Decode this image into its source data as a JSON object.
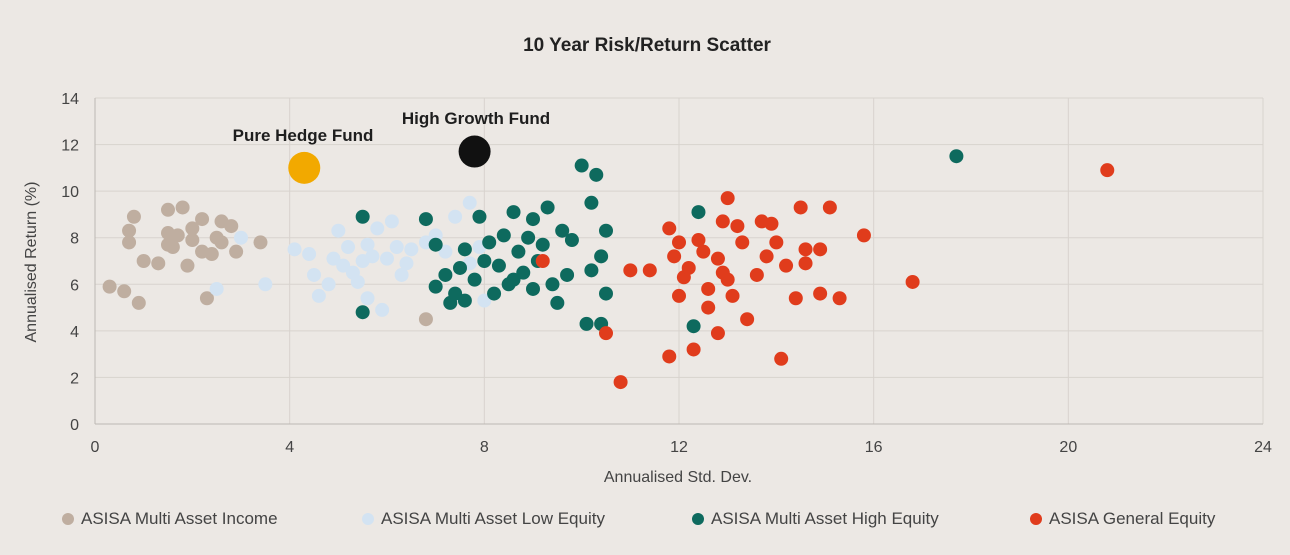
{
  "chart_data": {
    "type": "scatter",
    "title": "10 Year Risk/Return Scatter",
    "xlabel": "Annualised Std. Dev.",
    "ylabel": "Annualised Return (%)",
    "xlim": [
      0,
      24
    ],
    "ylim": [
      0,
      14
    ],
    "xticks": [
      0,
      4,
      8,
      12,
      16,
      20,
      24
    ],
    "yticks": [
      0,
      2,
      4,
      6,
      8,
      10,
      12,
      14
    ],
    "grid": true,
    "legend_position": "bottom",
    "series": [
      {
        "name": "ASISA Multi Asset Income",
        "color": "#bfaea0",
        "points": [
          [
            0.8,
            8.9
          ],
          [
            1.5,
            9.2
          ],
          [
            1.8,
            9.3
          ],
          [
            2.2,
            8.8
          ],
          [
            2.6,
            8.7
          ],
          [
            0.7,
            8.3
          ],
          [
            1.5,
            8.2
          ],
          [
            2,
            8.4
          ],
          [
            2.5,
            8.0
          ],
          [
            2.8,
            8.5
          ],
          [
            3.4,
            7.8
          ],
          [
            0.7,
            7.8
          ],
          [
            1.6,
            7.6
          ],
          [
            2.2,
            7.4
          ],
          [
            2.6,
            7.8
          ],
          [
            1,
            7.0
          ],
          [
            1.3,
            6.9
          ],
          [
            1.9,
            6.8
          ],
          [
            2.4,
            7.3
          ],
          [
            2.9,
            7.4
          ],
          [
            0.3,
            5.9
          ],
          [
            0.6,
            5.7
          ],
          [
            0.9,
            5.2
          ],
          [
            2.3,
            5.4
          ],
          [
            6.8,
            4.5
          ],
          [
            1.5,
            7.7
          ],
          [
            2.0,
            7.9
          ],
          [
            1.7,
            8.1
          ]
        ]
      },
      {
        "name": "ASISA Multi Asset Low Equity",
        "color": "#d3e3f2",
        "points": [
          [
            3.0,
            8.0
          ],
          [
            4.4,
            7.3
          ],
          [
            4.5,
            6.4
          ],
          [
            4.6,
            5.5
          ],
          [
            5.0,
            8.3
          ],
          [
            5.2,
            7.6
          ],
          [
            5.5,
            7.0
          ],
          [
            5.8,
            8.4
          ],
          [
            6.1,
            8.7
          ],
          [
            6.3,
            6.4
          ],
          [
            6.0,
            7.1
          ],
          [
            6.5,
            7.5
          ],
          [
            6.8,
            7.8
          ],
          [
            7.0,
            8.1
          ],
          [
            7.4,
            8.9
          ],
          [
            7.7,
            9.5
          ],
          [
            7.2,
            7.4
          ],
          [
            5.4,
            6.1
          ],
          [
            5.1,
            6.8
          ],
          [
            5.6,
            5.4
          ],
          [
            4.1,
            7.5
          ],
          [
            3.5,
            6.0
          ],
          [
            4.8,
            6.0
          ],
          [
            5.9,
            4.9
          ],
          [
            7.7,
            6.9
          ],
          [
            7.9,
            7.6
          ],
          [
            8.0,
            5.3
          ],
          [
            9.5,
            5.2
          ],
          [
            2.5,
            5.8
          ],
          [
            6.2,
            7.6
          ],
          [
            5.7,
            7.2
          ],
          [
            6.4,
            6.9
          ],
          [
            5.3,
            6.5
          ],
          [
            4.9,
            7.1
          ],
          [
            5.6,
            7.7
          ]
        ]
      },
      {
        "name": "ASISA Multi Asset High Equity",
        "color": "#0e6a5e",
        "points": [
          [
            5.5,
            8.9
          ],
          [
            6.8,
            8.8
          ],
          [
            7.9,
            8.9
          ],
          [
            7.0,
            7.7
          ],
          [
            7.6,
            7.5
          ],
          [
            8.4,
            8.1
          ],
          [
            8.6,
            9.1
          ],
          [
            9.0,
            8.8
          ],
          [
            9.3,
            9.3
          ],
          [
            9.6,
            8.3
          ],
          [
            10.0,
            11.1
          ],
          [
            10.3,
            10.7
          ],
          [
            10.2,
            9.5
          ],
          [
            10.5,
            8.3
          ],
          [
            10.4,
            7.2
          ],
          [
            10.2,
            6.6
          ],
          [
            10.5,
            5.6
          ],
          [
            10.1,
            4.3
          ],
          [
            10.4,
            4.3
          ],
          [
            12.4,
            9.1
          ],
          [
            12.3,
            4.2
          ],
          [
            17.7,
            11.5
          ],
          [
            5.5,
            4.8
          ],
          [
            7.0,
            5.9
          ],
          [
            7.3,
            5.2
          ],
          [
            7.6,
            5.3
          ],
          [
            7.2,
            6.4
          ],
          [
            7.8,
            6.2
          ],
          [
            8.2,
            5.6
          ],
          [
            8.5,
            6.0
          ],
          [
            8.8,
            6.5
          ],
          [
            9.1,
            7.0
          ],
          [
            9.4,
            6.0
          ],
          [
            9.7,
            6.4
          ],
          [
            8.0,
            7.0
          ],
          [
            8.7,
            7.4
          ],
          [
            9.2,
            7.7
          ],
          [
            9.8,
            7.9
          ],
          [
            8.9,
            8.0
          ],
          [
            8.3,
            6.8
          ],
          [
            7.5,
            6.7
          ],
          [
            7.4,
            5.6
          ],
          [
            9.5,
            5.2
          ],
          [
            9.0,
            5.8
          ],
          [
            8.1,
            7.8
          ],
          [
            8.6,
            6.2
          ]
        ]
      },
      {
        "name": "ASISA General Equity",
        "color": "#e03c1c",
        "points": [
          [
            9.2,
            7.0
          ],
          [
            10.5,
            3.9
          ],
          [
            10.8,
            1.8
          ],
          [
            11.0,
            6.6
          ],
          [
            11.4,
            6.6
          ],
          [
            11.8,
            8.4
          ],
          [
            11.9,
            7.2
          ],
          [
            12.0,
            7.8
          ],
          [
            12.1,
            6.3
          ],
          [
            12.0,
            5.5
          ],
          [
            12.2,
            6.7
          ],
          [
            12.4,
            7.9
          ],
          [
            12.5,
            7.4
          ],
          [
            12.6,
            5.8
          ],
          [
            12.8,
            7.1
          ],
          [
            12.9,
            6.5
          ],
          [
            12.9,
            8.7
          ],
          [
            13.0,
            9.7
          ],
          [
            13.2,
            8.5
          ],
          [
            13.3,
            7.8
          ],
          [
            13.0,
            6.2
          ],
          [
            13.1,
            5.5
          ],
          [
            13.4,
            4.5
          ],
          [
            13.6,
            6.4
          ],
          [
            13.8,
            7.2
          ],
          [
            13.9,
            8.6
          ],
          [
            14.0,
            7.8
          ],
          [
            14.2,
            6.8
          ],
          [
            14.4,
            5.4
          ],
          [
            14.5,
            9.3
          ],
          [
            14.6,
            7.5
          ],
          [
            14.6,
            6.9
          ],
          [
            14.9,
            5.6
          ],
          [
            14.9,
            7.5
          ],
          [
            15.1,
            9.3
          ],
          [
            15.3,
            5.4
          ],
          [
            15.8,
            8.1
          ],
          [
            16.8,
            6.1
          ],
          [
            20.8,
            10.9
          ],
          [
            11.8,
            2.9
          ],
          [
            12.3,
            3.2
          ],
          [
            12.8,
            3.9
          ],
          [
            14.1,
            2.8
          ],
          [
            12.6,
            5.0
          ],
          [
            13.7,
            8.7
          ]
        ]
      }
    ],
    "highlights": [
      {
        "name": "Pure Hedge Fund",
        "x": 4.3,
        "y": 11.0,
        "color": "#f2a900"
      },
      {
        "name": "High Growth Fund",
        "x": 7.8,
        "y": 11.7,
        "color": "#111111"
      }
    ]
  }
}
